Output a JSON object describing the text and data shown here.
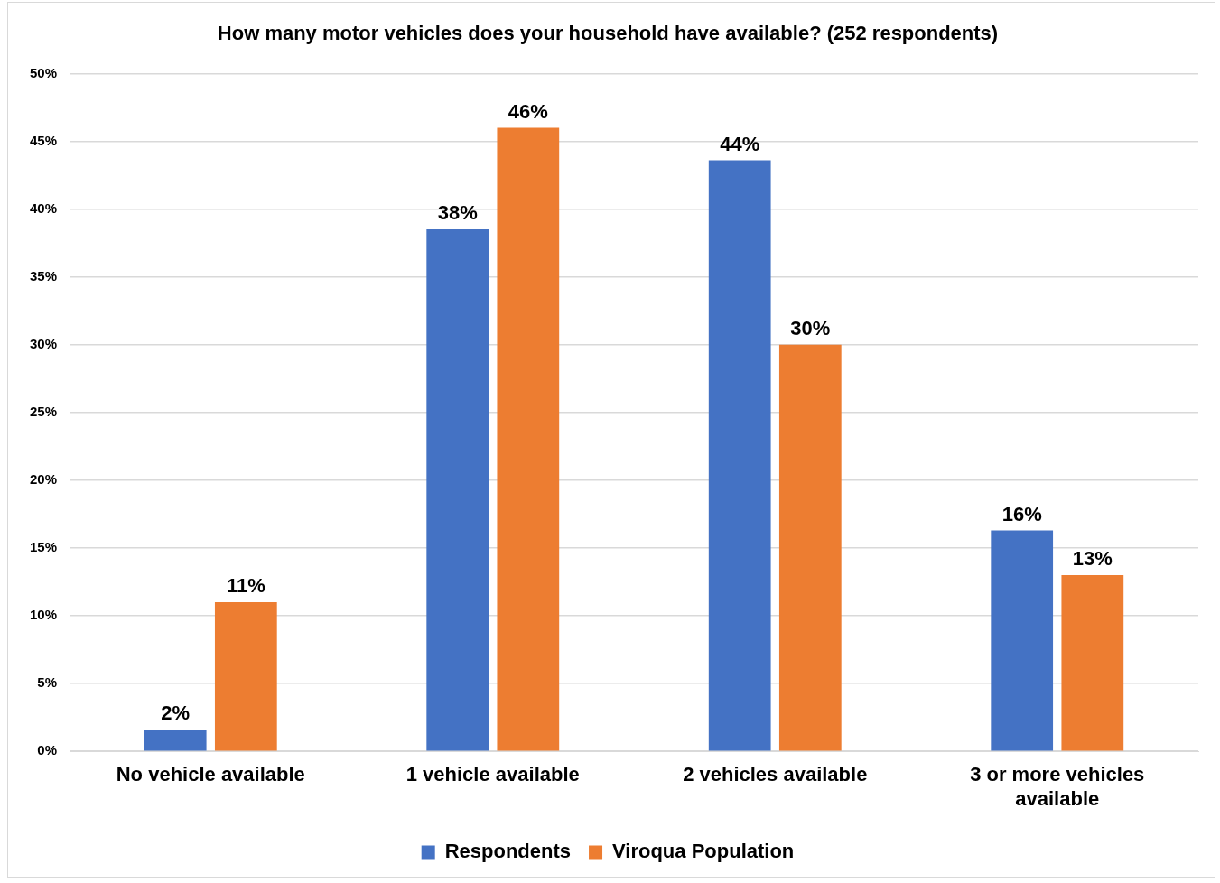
{
  "chart_data": {
    "type": "bar",
    "title": "How many motor vehicles does your household have available? (252 respondents)",
    "categories": [
      "No vehicle available",
      "1 vehicle available",
      "2 vehicles available",
      "3 or more vehicles available"
    ],
    "series": [
      {
        "name": "Respondents",
        "color": "#4472c4",
        "values": [
          1.6,
          38.5,
          43.6,
          16.3
        ],
        "value_labels": [
          "2%",
          "38%",
          "44%",
          "16%"
        ]
      },
      {
        "name": "Viroqua Population",
        "color": "#ed7d31",
        "values": [
          11,
          46,
          30,
          13
        ],
        "value_labels": [
          "11%",
          "46%",
          "30%",
          "13%"
        ]
      }
    ],
    "ylim": [
      0,
      50
    ],
    "yticks": [
      {
        "value": 0,
        "label": "0%"
      },
      {
        "value": 5,
        "label": "5%"
      },
      {
        "value": 10,
        "label": "10%"
      },
      {
        "value": 15,
        "label": "15%"
      },
      {
        "value": 20,
        "label": "20%"
      },
      {
        "value": 25,
        "label": "25%"
      },
      {
        "value": 30,
        "label": "30%"
      },
      {
        "value": 35,
        "label": "35%"
      },
      {
        "value": 40,
        "label": "40%"
      },
      {
        "value": 45,
        "label": "45%"
      },
      {
        "value": 50,
        "label": "50%"
      }
    ],
    "grid": "y",
    "legend": "bottom"
  }
}
